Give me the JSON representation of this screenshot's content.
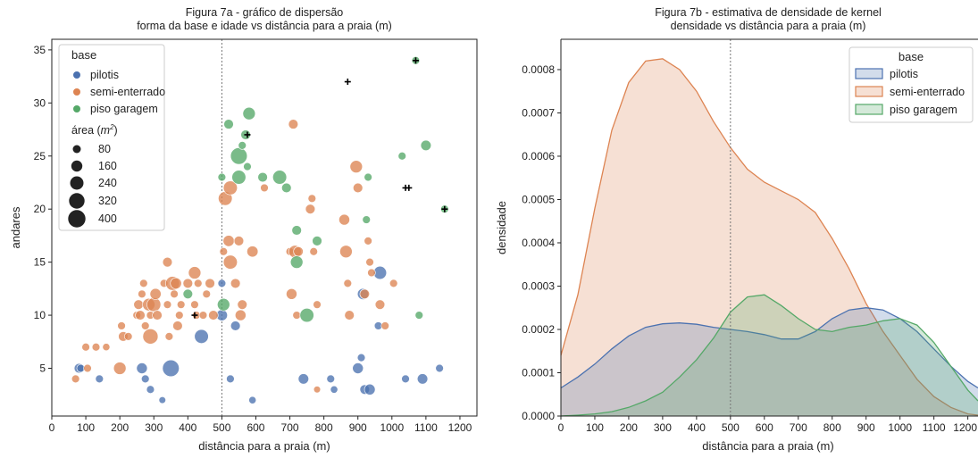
{
  "colors": {
    "pilotis": "#4c72b0",
    "semi-enterrado": "#dd8452",
    "piso garagem": "#55a868",
    "highlight": "#000000",
    "vline": "#777777"
  },
  "chart_data": [
    {
      "type": "scatter",
      "title": "Figura 7a - gráfico de dispersão",
      "subtitle": "forma da base e idade vs distância para a praia (m)",
      "xlabel": "distância para a praia (m)",
      "ylabel": "andares",
      "xlim": [
        0,
        1250
      ],
      "ylim": [
        0.5,
        36
      ],
      "xticks": [
        0,
        100,
        200,
        300,
        400,
        500,
        600,
        700,
        800,
        900,
        1000,
        1100,
        1200
      ],
      "yticks": [
        5,
        10,
        15,
        20,
        25,
        30,
        35
      ],
      "vline": 500,
      "legend": {
        "placement": "top-left",
        "title": "base",
        "entries": [
          "pilotis",
          "semi-enterrado",
          "piso garagem"
        ],
        "size_title_prefix": "área (",
        "size_title_sym": "m",
        "size_title_exp": "2",
        "size_title_suffix": ")",
        "sizes": [
          80,
          160,
          240,
          320,
          400
        ]
      },
      "series": [
        {
          "name": "pilotis",
          "points": [
            [
              80,
              5,
              120
            ],
            [
              85,
              5,
              80
            ],
            [
              140,
              4,
              80
            ],
            [
              265,
              5,
              150
            ],
            [
              275,
              4,
              80
            ],
            [
              290,
              3,
              80
            ],
            [
              325,
              2,
              60
            ],
            [
              350,
              5,
              360
            ],
            [
              440,
              8,
              250
            ],
            [
              500,
              13,
              80
            ],
            [
              500,
              10,
              160
            ],
            [
              525,
              4,
              80
            ],
            [
              540,
              9,
              120
            ],
            [
              590,
              2,
              70
            ],
            [
              740,
              4,
              140
            ],
            [
              820,
              4,
              80
            ],
            [
              830,
              3,
              70
            ],
            [
              900,
              5,
              150
            ],
            [
              910,
              6,
              80
            ],
            [
              915,
              12,
              160
            ],
            [
              920,
              3,
              120
            ],
            [
              935,
              3,
              150
            ],
            [
              960,
              9,
              80
            ],
            [
              965,
              14,
              220
            ],
            [
              1040,
              4,
              80
            ],
            [
              1090,
              4,
              140
            ],
            [
              1140,
              5,
              80
            ]
          ]
        },
        {
          "name": "semi-enterrado",
          "points": [
            [
              70,
              4,
              80
            ],
            [
              100,
              7,
              80
            ],
            [
              105,
              5,
              80
            ],
            [
              130,
              7,
              80
            ],
            [
              160,
              7,
              70
            ],
            [
              200,
              5,
              200
            ],
            [
              205,
              9,
              80
            ],
            [
              210,
              8,
              120
            ],
            [
              225,
              8,
              80
            ],
            [
              250,
              10,
              80
            ],
            [
              255,
              11,
              120
            ],
            [
              260,
              10,
              120
            ],
            [
              265,
              12,
              80
            ],
            [
              270,
              13,
              80
            ],
            [
              275,
              9,
              80
            ],
            [
              285,
              11,
              200
            ],
            [
              290,
              8,
              300
            ],
            [
              290,
              10,
              80
            ],
            [
              300,
              11,
              250
            ],
            [
              305,
              12,
              160
            ],
            [
              310,
              10,
              120
            ],
            [
              330,
              13,
              80
            ],
            [
              340,
              15,
              120
            ],
            [
              340,
              11,
              80
            ],
            [
              345,
              8,
              80
            ],
            [
              355,
              13,
              250
            ],
            [
              360,
              12,
              80
            ],
            [
              365,
              13,
              160
            ],
            [
              370,
              9,
              120
            ],
            [
              375,
              10,
              80
            ],
            [
              380,
              11,
              80
            ],
            [
              400,
              13,
              120
            ],
            [
              420,
              14,
              200
            ],
            [
              420,
              11,
              80
            ],
            [
              425,
              10,
              80
            ],
            [
              430,
              13,
              80
            ],
            [
              445,
              10,
              80
            ],
            [
              455,
              12,
              80
            ],
            [
              465,
              13,
              120
            ],
            [
              475,
              10,
              120
            ],
            [
              505,
              16,
              80
            ],
            [
              510,
              21,
              250
            ],
            [
              520,
              17,
              160
            ],
            [
              525,
              22,
              250
            ],
            [
              525,
              15,
              250
            ],
            [
              540,
              13,
              120
            ],
            [
              550,
              17,
              120
            ],
            [
              555,
              10,
              150
            ],
            [
              560,
              11,
              120
            ],
            [
              590,
              16,
              160
            ],
            [
              625,
              22,
              80
            ],
            [
              700,
              16,
              80
            ],
            [
              705,
              12,
              150
            ],
            [
              710,
              28,
              120
            ],
            [
              715,
              16,
              200
            ],
            [
              720,
              10,
              80
            ],
            [
              725,
              16,
              120
            ],
            [
              760,
              20,
              120
            ],
            [
              765,
              21,
              80
            ],
            [
              770,
              16,
              80
            ],
            [
              780,
              11,
              80
            ],
            [
              780,
              3,
              60
            ],
            [
              860,
              19,
              150
            ],
            [
              865,
              16,
              200
            ],
            [
              870,
              13,
              80
            ],
            [
              875,
              10,
              120
            ],
            [
              895,
              24,
              200
            ],
            [
              900,
              22,
              120
            ],
            [
              920,
              12,
              120
            ],
            [
              930,
              17,
              80
            ],
            [
              935,
              15,
              80
            ],
            [
              940,
              14,
              80
            ],
            [
              965,
              11,
              120
            ],
            [
              980,
              9,
              80
            ],
            [
              1005,
              13,
              80
            ]
          ]
        },
        {
          "name": "piso garagem",
          "points": [
            [
              400,
              12,
              120
            ],
            [
              500,
              23,
              80
            ],
            [
              505,
              11,
              200
            ],
            [
              520,
              28,
              120
            ],
            [
              550,
              25,
              360
            ],
            [
              550,
              23,
              250
            ],
            [
              560,
              26,
              80
            ],
            [
              570,
              27,
              120
            ],
            [
              575,
              24,
              80
            ],
            [
              580,
              29,
              200
            ],
            [
              620,
              23,
              120
            ],
            [
              670,
              23,
              250
            ],
            [
              690,
              22,
              120
            ],
            [
              720,
              18,
              120
            ],
            [
              720,
              15,
              200
            ],
            [
              750,
              10,
              250
            ],
            [
              780,
              17,
              120
            ],
            [
              925,
              19,
              80
            ],
            [
              930,
              23,
              80
            ],
            [
              1030,
              25,
              80
            ],
            [
              1070,
              34,
              80
            ],
            [
              1080,
              10,
              80
            ],
            [
              1100,
              26,
              140
            ],
            [
              1155,
              20,
              80
            ]
          ]
        }
      ],
      "highlighted": [
        [
          420,
          10
        ],
        [
          575,
          27
        ],
        [
          870,
          32
        ],
        [
          1040,
          22
        ],
        [
          1050,
          22
        ],
        [
          1070,
          34
        ],
        [
          1155,
          20
        ]
      ]
    },
    {
      "type": "area",
      "title": "Figura 7b - estimativa de densidade de kernel",
      "subtitle": "densidade vs distância para a praia (m)",
      "xlabel": "distância para a praia (m)",
      "ylabel": "densidade",
      "xlim": [
        0,
        1230
      ],
      "ylim": [
        0,
        0.00087
      ],
      "xticks": [
        0,
        100,
        200,
        300,
        400,
        500,
        600,
        700,
        800,
        900,
        1000,
        1100,
        1200
      ],
      "yticks": [
        "0.0000",
        "0.0001",
        "0.0002",
        "0.0003",
        "0.0004",
        "0.0005",
        "0.0006",
        "0.0007",
        "0.0008"
      ],
      "vline": 500,
      "legend": {
        "placement": "top-right",
        "title": "base",
        "entries": [
          "pilotis",
          "semi-enterrado",
          "piso garagem"
        ]
      },
      "x": [
        0,
        50,
        100,
        150,
        200,
        250,
        300,
        350,
        400,
        450,
        500,
        550,
        600,
        650,
        700,
        750,
        800,
        850,
        900,
        950,
        1000,
        1050,
        1100,
        1150,
        1200,
        1230
      ],
      "series": [
        {
          "name": "pilotis",
          "values": [
            6.5e-05,
            9e-05,
            0.00012,
            0.000155,
            0.000185,
            0.000205,
            0.000213,
            0.000215,
            0.000212,
            0.000205,
            0.0002,
            0.000195,
            0.000188,
            0.000178,
            0.000178,
            0.000195,
            0.000225,
            0.000245,
            0.00025,
            0.000245,
            0.000225,
            0.000195,
            0.000155,
            0.000115,
            8e-05,
            6.5e-05
          ]
        },
        {
          "name": "semi-enterrado",
          "values": [
            0.00014,
            0.00028,
            0.00048,
            0.00066,
            0.00077,
            0.00082,
            0.000825,
            0.0008,
            0.00075,
            0.00068,
            0.00062,
            0.00057,
            0.00054,
            0.00052,
            0.0005,
            0.00047,
            0.00041,
            0.00034,
            0.00026,
            0.000195,
            0.00014,
            8.5e-05,
            4.5e-05,
            2e-05,
            5e-06,
            2e-06
          ]
        },
        {
          "name": "piso garagem",
          "values": [
            0.0,
            2e-06,
            5e-06,
            1e-05,
            2e-05,
            3.5e-05,
            5.5e-05,
            9e-05,
            0.00013,
            0.00018,
            0.00024,
            0.000275,
            0.00028,
            0.000255,
            0.000225,
            0.0002,
            0.000195,
            0.000205,
            0.00021,
            0.00022,
            0.000225,
            0.00021,
            0.00017,
            0.000115,
            6e-05,
            3.5e-05
          ]
        }
      ]
    }
  ]
}
